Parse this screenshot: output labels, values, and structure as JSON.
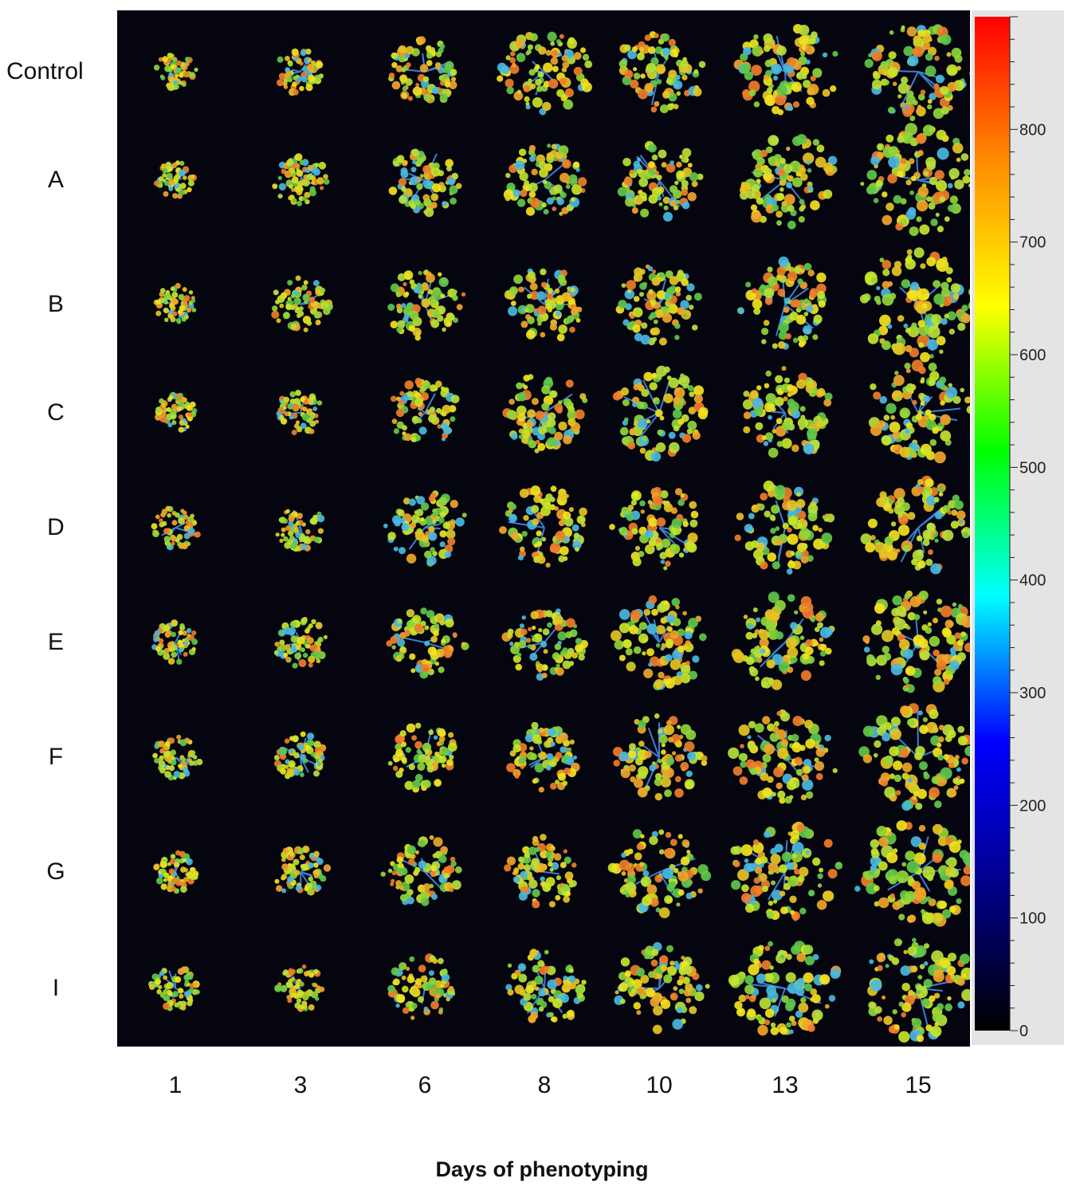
{
  "rows": [
    "Control",
    "A",
    "B",
    "C",
    "D",
    "E",
    "F",
    "G",
    "I"
  ],
  "days": [
    "1",
    "3",
    "6",
    "8",
    "10",
    "13",
    "15"
  ],
  "x_title": "Days of phenotyping",
  "colorbar": {
    "min": 0,
    "max": 900,
    "tick_labels": [
      "0",
      "100",
      "200",
      "300",
      "400",
      "500",
      "600",
      "700",
      "800"
    ],
    "colors": [
      "#000000",
      "#00008b",
      "#0000ff",
      "#00ffff",
      "#00ff00",
      "#ffff00",
      "#ff8c00",
      "#ff0000"
    ]
  },
  "plant_colors": [
    "#f2e31f",
    "#c8e52a",
    "#f0a52a",
    "#8fd63a",
    "#e6c424",
    "#5fc74a",
    "#f07d2a",
    "#49b8e0",
    "#b9e03a"
  ],
  "background_color": "#050510"
}
